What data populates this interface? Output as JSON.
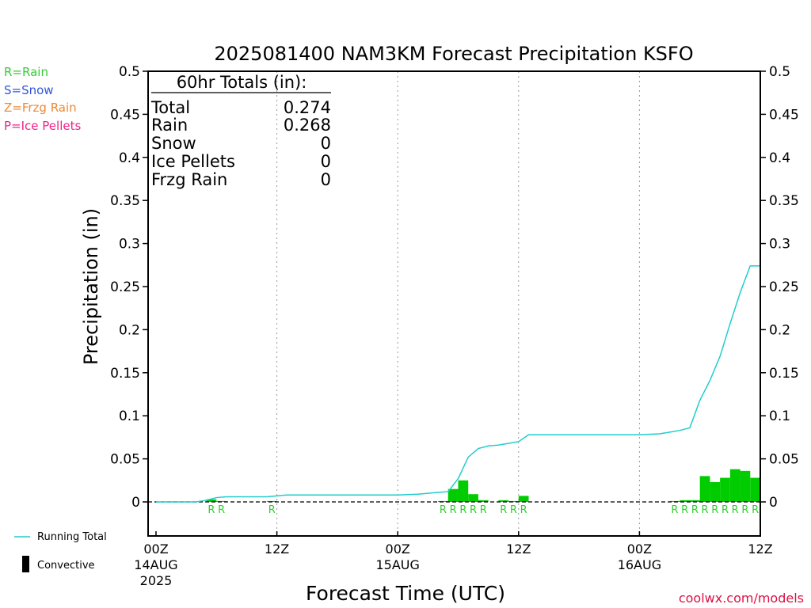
{
  "chart_data": {
    "type": "bar",
    "title": "2025081400 NAM3KM Forecast Precipitation KSFO",
    "xlabel": "Forecast Time (UTC)",
    "ylabel": "Precipitation (in)",
    "ylim": [
      0,
      0.5
    ],
    "y_ticks": [
      "0",
      "0.05",
      "0.1",
      "0.15",
      "0.2",
      "0.25",
      "0.3",
      "0.35",
      "0.4",
      "0.45",
      "0.5"
    ],
    "x_range_hours": [
      0,
      60
    ],
    "x_ticks": [
      {
        "hour": 0,
        "line1": "00Z",
        "line2": "14AUG",
        "line3": "2025"
      },
      {
        "hour": 12,
        "line1": "12Z",
        "line2": "",
        "line3": ""
      },
      {
        "hour": 24,
        "line1": "00Z",
        "line2": "15AUG",
        "line3": ""
      },
      {
        "hour": 36,
        "line1": "12Z",
        "line2": "",
        "line3": ""
      },
      {
        "hour": 48,
        "line1": "00Z",
        "line2": "16AUG",
        "line3": ""
      },
      {
        "hour": 60,
        "line1": "12Z",
        "line2": "",
        "line3": ""
      }
    ],
    "totals": {
      "heading": "60hr Totals (in):",
      "rows": [
        {
          "label": "Total",
          "value": "0.274"
        },
        {
          "label": "Rain",
          "value": "0.268"
        },
        {
          "label": "Snow",
          "value": "0"
        },
        {
          "label": "Ice Pellets",
          "value": "0"
        },
        {
          "label": "Frzg Rain",
          "value": "0"
        }
      ]
    },
    "type_legend": [
      {
        "text": "R=Rain",
        "color": "#33cc33"
      },
      {
        "text": "S=Snow",
        "color": "#3355dd"
      },
      {
        "text": "Z=Frzg Rain",
        "color": "#ee8833"
      },
      {
        "text": "P=Ice Pellets",
        "color": "#ee2288"
      }
    ],
    "series_legend": {
      "running": "Running Total",
      "convective": "Convective"
    },
    "bar_color": "#00cc00",
    "line_color": "#22cccc",
    "bars": [
      {
        "hour": 5.5,
        "value": 0.003,
        "type": "R"
      },
      {
        "hour": 6.5,
        "value": 0.001,
        "type": "R"
      },
      {
        "hour": 11.5,
        "value": 0.001,
        "type": "R"
      },
      {
        "hour": 28.5,
        "value": 0.001,
        "type": "R"
      },
      {
        "hour": 29.5,
        "value": 0.015,
        "type": "R"
      },
      {
        "hour": 30.5,
        "value": 0.025,
        "type": "R"
      },
      {
        "hour": 31.5,
        "value": 0.009,
        "type": "R"
      },
      {
        "hour": 32.5,
        "value": 0.002,
        "type": "R"
      },
      {
        "hour": 34.5,
        "value": 0.002,
        "type": "R"
      },
      {
        "hour": 35.5,
        "value": 0.001,
        "type": "R"
      },
      {
        "hour": 36.5,
        "value": 0.007,
        "type": "R"
      },
      {
        "hour": 51.5,
        "value": 0.001,
        "type": "R"
      },
      {
        "hour": 52.5,
        "value": 0.002,
        "type": "R"
      },
      {
        "hour": 53.5,
        "value": 0.002,
        "type": "R"
      },
      {
        "hour": 54.5,
        "value": 0.03,
        "type": "R"
      },
      {
        "hour": 55.5,
        "value": 0.023,
        "type": "R"
      },
      {
        "hour": 56.5,
        "value": 0.028,
        "type": "R"
      },
      {
        "hour": 57.5,
        "value": 0.038,
        "type": "R"
      },
      {
        "hour": 58.5,
        "value": 0.036,
        "type": "R"
      },
      {
        "hour": 59.5,
        "value": 0.028,
        "type": "R"
      }
    ],
    "running_total": {
      "hours": [
        0,
        4,
        5,
        6,
        7,
        8,
        11,
        12,
        13,
        16,
        20,
        24,
        26,
        28,
        29,
        30,
        31,
        32,
        33,
        34,
        35,
        36,
        37,
        40,
        44,
        48,
        50,
        51,
        52,
        53,
        54,
        55,
        56,
        57,
        58,
        59,
        60
      ],
      "values": [
        0,
        0,
        0.002,
        0.005,
        0.006,
        0.006,
        0.006,
        0.007,
        0.008,
        0.008,
        0.008,
        0.008,
        0.009,
        0.011,
        0.012,
        0.027,
        0.052,
        0.062,
        0.065,
        0.066,
        0.068,
        0.07,
        0.078,
        0.078,
        0.078,
        0.078,
        0.079,
        0.081,
        0.083,
        0.086,
        0.118,
        0.141,
        0.169,
        0.207,
        0.243,
        0.274,
        0.274
      ]
    },
    "grid": "vertical dotted",
    "footer": "coolwx.com/models"
  }
}
